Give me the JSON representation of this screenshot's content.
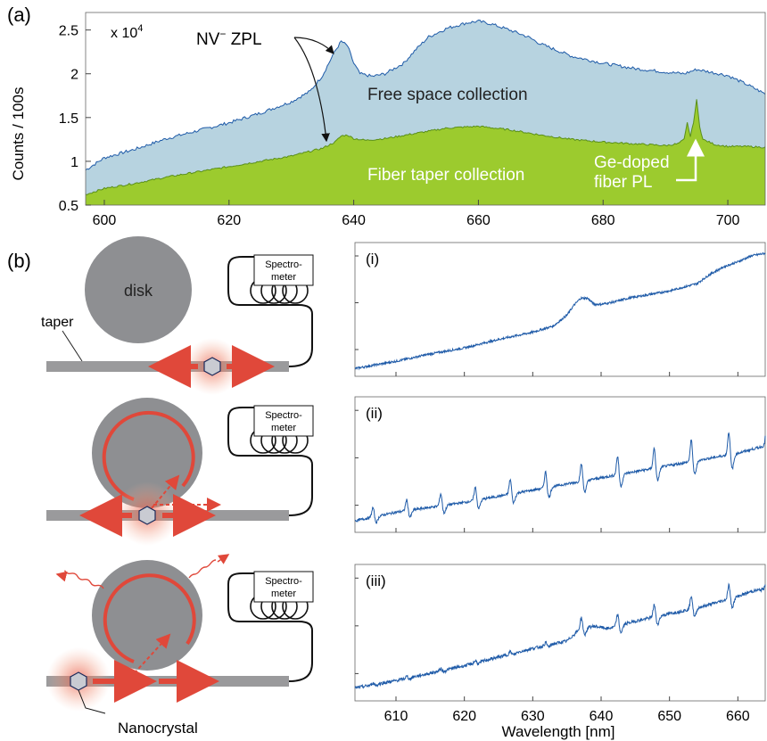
{
  "panel_a": {
    "label": "(a)",
    "multiplier": "x 10",
    "multiplier_exp": "4",
    "ylabel": "Counts  / 100s",
    "annotations": {
      "zpl": "NV",
      "zpl_sup": "−",
      "zpl_tail": " ZPL",
      "free_space": "Free space collection",
      "fiber_taper": "Fiber taper collection",
      "ge_line1": "Ge-doped",
      "ge_line2": "fiber PL"
    },
    "colors": {
      "free_space_fill": "#b7d3e0",
      "free_space_line": "#1f5ba8",
      "taper_fill": "#9ccb2e",
      "taper_line": "#5a8f1a"
    }
  },
  "panel_b": {
    "label": "(b)",
    "disk_label": "disk",
    "taper_label": "taper",
    "spectrometer_line1": "Spectro-",
    "spectrometer_line2": "meter",
    "nanocrystal_label": "Nanocrystal",
    "subpanels": [
      "(i)",
      "(ii)",
      "(iii)"
    ],
    "xlabel": "Wavelength [nm]",
    "colors": {
      "disk": "#8e8f92",
      "taper": "#9a9a9c",
      "light": "#e0483a",
      "spectrum": "#1f5ba8"
    }
  },
  "chart_data": [
    {
      "type": "area",
      "xlim": [
        597,
        706
      ],
      "ylim": [
        0.5,
        2.7
      ],
      "y_scale_factor": "x 10^4",
      "xticks": [
        "600",
        "620",
        "640",
        "660",
        "680",
        "700"
      ],
      "yticks": [
        "0.5",
        "1",
        "1.5",
        "2",
        "2.5"
      ],
      "ylabel": "Counts  / 100s",
      "series": [
        {
          "name": "Free space collection",
          "x": [
            597,
            600,
            605,
            610,
            615,
            620,
            625,
            630,
            633,
            635,
            637,
            638,
            639,
            640,
            641,
            643,
            645,
            648,
            650,
            652,
            655,
            658,
            660,
            662,
            665,
            668,
            670,
            675,
            680,
            685,
            690,
            693,
            695,
            700,
            703,
            706
          ],
          "y": [
            0.9,
            1.04,
            1.14,
            1.26,
            1.35,
            1.44,
            1.55,
            1.68,
            1.8,
            1.98,
            2.26,
            2.37,
            2.32,
            2.12,
            2.0,
            1.97,
            2.0,
            2.12,
            2.28,
            2.42,
            2.52,
            2.58,
            2.6,
            2.57,
            2.5,
            2.42,
            2.34,
            2.2,
            2.12,
            2.06,
            2.02,
            2.0,
            2.05,
            1.98,
            1.88,
            1.77
          ]
        },
        {
          "name": "Fiber taper collection",
          "x": [
            597,
            600,
            605,
            610,
            615,
            620,
            625,
            630,
            635,
            637,
            638,
            639,
            640,
            642,
            645,
            650,
            655,
            660,
            665,
            670,
            675,
            680,
            685,
            690,
            692,
            693,
            693.5,
            694,
            694.5,
            695,
            695.5,
            696,
            698,
            700,
            703,
            706
          ],
          "y": [
            0.62,
            0.69,
            0.75,
            0.82,
            0.88,
            0.94,
            1.0,
            1.06,
            1.15,
            1.22,
            1.29,
            1.3,
            1.26,
            1.24,
            1.26,
            1.32,
            1.38,
            1.4,
            1.36,
            1.3,
            1.25,
            1.22,
            1.2,
            1.18,
            1.2,
            1.25,
            1.44,
            1.28,
            1.45,
            1.7,
            1.4,
            1.25,
            1.19,
            1.17,
            1.17,
            1.16
          ]
        }
      ]
    },
    {
      "type": "line",
      "title": "(i)",
      "xlim": [
        604,
        664
      ],
      "ylim": [
        0,
        1
      ],
      "series": [
        {
          "x": [
            604,
            610,
            615,
            620,
            625,
            630,
            633,
            635,
            636,
            637,
            638,
            639,
            640,
            642,
            644,
            646,
            650,
            654,
            656,
            658,
            660,
            662,
            664
          ],
          "y": [
            0.02,
            0.08,
            0.14,
            0.19,
            0.26,
            0.32,
            0.37,
            0.46,
            0.54,
            0.6,
            0.6,
            0.55,
            0.55,
            0.57,
            0.6,
            0.62,
            0.66,
            0.72,
            0.8,
            0.86,
            0.9,
            0.95,
            0.97
          ]
        }
      ]
    },
    {
      "type": "line",
      "title": "(ii)",
      "xlim": [
        604,
        664
      ],
      "ylim": [
        0,
        1
      ],
      "series": [
        {
          "x": [
            604,
            610,
            620,
            630,
            640,
            650,
            660,
            664
          ],
          "y": [
            0.05,
            0.12,
            0.2,
            0.3,
            0.4,
            0.5,
            0.6,
            0.66
          ]
        }
      ]
    },
    {
      "type": "line",
      "title": "(iii)",
      "xlabel": "Wavelength [nm]",
      "xlim": [
        604,
        664
      ],
      "ylim": [
        0,
        1
      ],
      "xticks": [
        "610",
        "620",
        "630",
        "640",
        "650",
        "660"
      ],
      "series": [
        {
          "x": [
            604,
            610,
            615,
            620,
            625,
            630,
            635,
            637,
            639,
            641,
            645,
            650,
            655,
            660,
            662,
            664
          ],
          "y": [
            0.06,
            0.12,
            0.18,
            0.24,
            0.31,
            0.38,
            0.44,
            0.54,
            0.56,
            0.54,
            0.6,
            0.66,
            0.72,
            0.8,
            0.84,
            0.86
          ]
        }
      ]
    }
  ]
}
